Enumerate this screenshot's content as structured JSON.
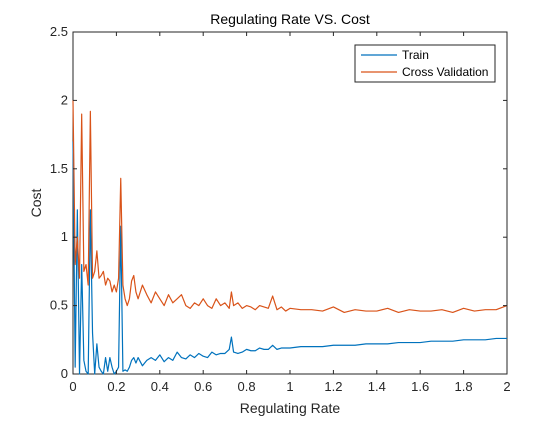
{
  "chart_data": {
    "type": "line",
    "title": "Regulating Rate VS. Cost",
    "xlabel": "Regulating Rate",
    "ylabel": "Cost",
    "xlim": [
      0,
      2
    ],
    "ylim": [
      0,
      2.5
    ],
    "xticks": [
      0,
      0.2,
      0.4,
      0.6,
      0.8,
      1,
      1.2,
      1.4,
      1.6,
      1.8,
      2
    ],
    "xtick_labels": [
      "0",
      "0.2",
      "0.4",
      "0.6",
      "0.8",
      "1",
      "1.2",
      "1.4",
      "1.6",
      "1.8",
      "2"
    ],
    "yticks": [
      0,
      0.5,
      1,
      1.5,
      2,
      2.5
    ],
    "ytick_labels": [
      "0",
      "0.5",
      "1",
      "1.5",
      "2",
      "2.5"
    ],
    "grid": false,
    "legend_location": "top-right",
    "series": [
      {
        "name": "Train",
        "color": "#0072BD",
        "x": [
          0,
          0.01,
          0.02,
          0.03,
          0.04,
          0.05,
          0.06,
          0.07,
          0.08,
          0.09,
          0.1,
          0.11,
          0.12,
          0.13,
          0.14,
          0.15,
          0.16,
          0.17,
          0.18,
          0.19,
          0.2,
          0.21,
          0.22,
          0.23,
          0.24,
          0.25,
          0.26,
          0.27,
          0.28,
          0.29,
          0.3,
          0.32,
          0.34,
          0.36,
          0.38,
          0.4,
          0.42,
          0.44,
          0.46,
          0.48,
          0.5,
          0.52,
          0.54,
          0.56,
          0.58,
          0.6,
          0.62,
          0.64,
          0.66,
          0.68,
          0.7,
          0.72,
          0.73,
          0.74,
          0.76,
          0.78,
          0.8,
          0.82,
          0.84,
          0.86,
          0.88,
          0.9,
          0.92,
          0.94,
          0.96,
          0.98,
          1.0,
          1.05,
          1.1,
          1.15,
          1.2,
          1.25,
          1.3,
          1.35,
          1.4,
          1.45,
          1.5,
          1.55,
          1.6,
          1.65,
          1.7,
          1.75,
          1.8,
          1.85,
          1.9,
          1.95,
          2.0
        ],
        "y": [
          1.7,
          0.05,
          1.2,
          0.0,
          0.8,
          0.1,
          0.02,
          0.0,
          1.2,
          0.3,
          0.0,
          0.22,
          0.05,
          0.02,
          0.0,
          0.12,
          0.02,
          0.12,
          0.05,
          0.0,
          0.02,
          0.05,
          1.08,
          0.02,
          0.03,
          0.02,
          0.05,
          0.1,
          0.12,
          0.08,
          0.12,
          0.06,
          0.1,
          0.12,
          0.1,
          0.14,
          0.09,
          0.12,
          0.1,
          0.16,
          0.12,
          0.11,
          0.14,
          0.12,
          0.15,
          0.13,
          0.12,
          0.16,
          0.14,
          0.15,
          0.15,
          0.18,
          0.27,
          0.16,
          0.15,
          0.16,
          0.18,
          0.17,
          0.17,
          0.19,
          0.18,
          0.18,
          0.21,
          0.18,
          0.19,
          0.19,
          0.19,
          0.2,
          0.2,
          0.2,
          0.21,
          0.21,
          0.21,
          0.22,
          0.22,
          0.22,
          0.23,
          0.23,
          0.23,
          0.24,
          0.24,
          0.24,
          0.25,
          0.25,
          0.25,
          0.26,
          0.26
        ]
      },
      {
        "name": "Cross Validation",
        "color": "#D95319",
        "x": [
          0,
          0.01,
          0.02,
          0.03,
          0.04,
          0.05,
          0.06,
          0.07,
          0.08,
          0.09,
          0.1,
          0.11,
          0.12,
          0.13,
          0.14,
          0.15,
          0.16,
          0.17,
          0.18,
          0.19,
          0.2,
          0.21,
          0.22,
          0.23,
          0.24,
          0.25,
          0.26,
          0.27,
          0.28,
          0.29,
          0.3,
          0.32,
          0.34,
          0.36,
          0.38,
          0.4,
          0.42,
          0.44,
          0.46,
          0.48,
          0.5,
          0.52,
          0.54,
          0.56,
          0.58,
          0.6,
          0.62,
          0.64,
          0.66,
          0.68,
          0.7,
          0.72,
          0.73,
          0.74,
          0.76,
          0.78,
          0.8,
          0.82,
          0.84,
          0.86,
          0.88,
          0.9,
          0.92,
          0.94,
          0.96,
          0.98,
          1.0,
          1.05,
          1.1,
          1.15,
          1.2,
          1.25,
          1.3,
          1.35,
          1.4,
          1.45,
          1.5,
          1.55,
          1.6,
          1.65,
          1.7,
          1.75,
          1.8,
          1.85,
          1.9,
          1.95,
          2.0
        ],
        "y": [
          2.0,
          0.8,
          1.0,
          0.7,
          1.9,
          0.75,
          0.8,
          0.65,
          1.92,
          0.7,
          0.75,
          0.9,
          0.7,
          0.72,
          0.75,
          0.65,
          0.7,
          0.68,
          0.6,
          0.65,
          0.6,
          0.7,
          1.43,
          0.65,
          0.55,
          0.5,
          0.55,
          0.68,
          0.72,
          0.6,
          0.55,
          0.65,
          0.58,
          0.52,
          0.6,
          0.55,
          0.5,
          0.58,
          0.52,
          0.55,
          0.58,
          0.5,
          0.48,
          0.52,
          0.5,
          0.55,
          0.5,
          0.48,
          0.55,
          0.5,
          0.52,
          0.48,
          0.6,
          0.5,
          0.52,
          0.48,
          0.5,
          0.49,
          0.47,
          0.5,
          0.49,
          0.48,
          0.57,
          0.47,
          0.49,
          0.46,
          0.48,
          0.47,
          0.47,
          0.46,
          0.49,
          0.45,
          0.47,
          0.46,
          0.46,
          0.48,
          0.45,
          0.47,
          0.46,
          0.46,
          0.47,
          0.45,
          0.48,
          0.46,
          0.47,
          0.47,
          0.5
        ]
      }
    ]
  }
}
